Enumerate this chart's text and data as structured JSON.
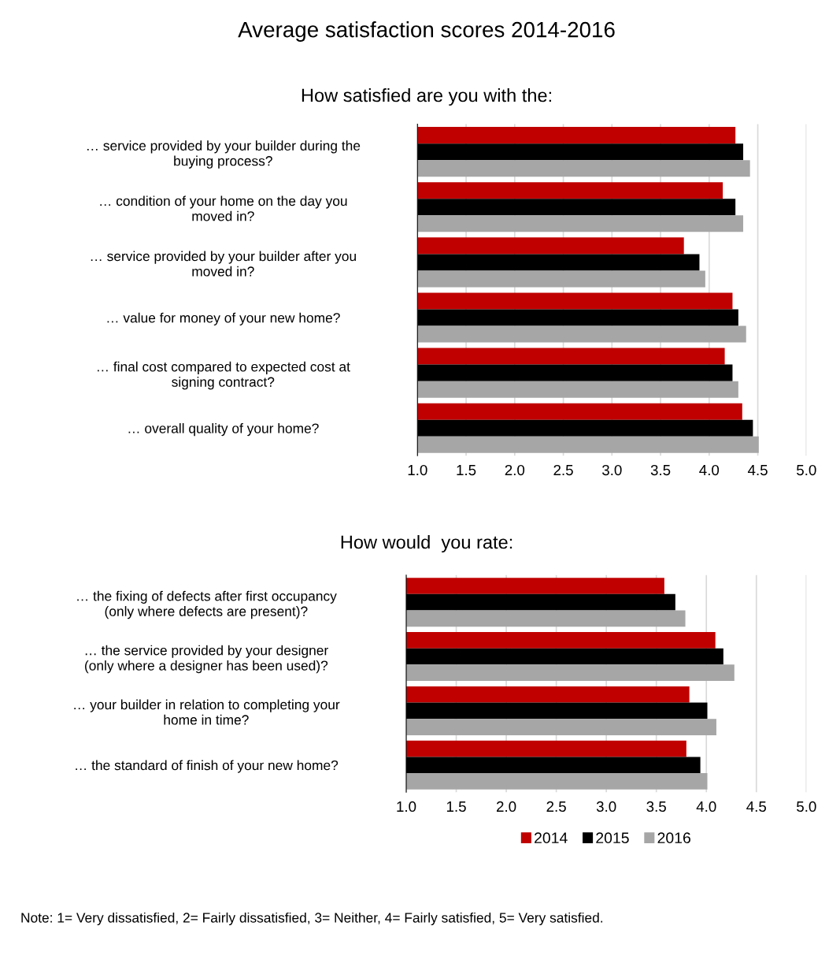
{
  "chart_data": [
    {
      "type": "bar",
      "orientation": "horizontal",
      "title": "Average satisfaction scores 2014-2016",
      "subtitle": "How satisfied are you with the:",
      "categories": [
        "… service provided by your builder during the\nbuying process?",
        "… condition of your home on the day you\nmoved in?",
        "… service provided by your builder after you\nmoved in?",
        "… value for money of your new home?",
        "… final cost compared to expected cost at\nsigning contract?",
        "… overall quality of your home?"
      ],
      "series": [
        {
          "name": "2014",
          "color": "#c00000",
          "values": [
            4.27,
            4.14,
            3.74,
            4.24,
            4.16,
            4.34
          ]
        },
        {
          "name": "2015",
          "color": "#000000",
          "values": [
            4.35,
            4.27,
            3.9,
            4.3,
            4.24,
            4.45
          ]
        },
        {
          "name": "2016",
          "color": "#a6a6a6",
          "values": [
            4.42,
            4.35,
            3.96,
            4.38,
            4.3,
            4.51
          ]
        }
      ],
      "xlim": [
        1,
        5
      ],
      "xticks": [
        {
          "value": 1,
          "label": "1.0"
        },
        {
          "value": 1.5,
          "label": "1.5"
        },
        {
          "value": 2,
          "label": "2.0"
        },
        {
          "value": 2.5,
          "label": "2.5"
        },
        {
          "value": 3,
          "label": "3.0"
        },
        {
          "value": 3.5,
          "label": "3.5"
        },
        {
          "value": 4,
          "label": "4.0"
        },
        {
          "value": 4.5,
          "label": "4.5"
        },
        {
          "value": 5,
          "label": "5.0"
        }
      ],
      "grid": "x",
      "legend": "bottom"
    },
    {
      "type": "bar",
      "orientation": "horizontal",
      "title": "How would  you rate:",
      "categories": [
        "… the fixing of defects after first occupancy\n(only where defects are present)?",
        "… the service provided by your designer\n(only where a designer has been used)?",
        "… your builder in relation to completing your\nhome in time?",
        "… the standard of finish of your new home?"
      ],
      "series": [
        {
          "name": "2014",
          "color": "#c00000",
          "values": [
            3.58,
            4.09,
            3.83,
            3.8
          ]
        },
        {
          "name": "2015",
          "color": "#000000",
          "values": [
            3.69,
            4.17,
            4.01,
            3.94
          ]
        },
        {
          "name": "2016",
          "color": "#a6a6a6",
          "values": [
            3.79,
            4.28,
            4.1,
            4.01
          ]
        }
      ],
      "xlim": [
        1,
        5
      ],
      "xticks": [
        {
          "value": 1,
          "label": "1.0"
        },
        {
          "value": 1.5,
          "label": "1.5"
        },
        {
          "value": 2,
          "label": "2.0"
        },
        {
          "value": 2.5,
          "label": "2.5"
        },
        {
          "value": 3,
          "label": "3.0"
        },
        {
          "value": 3.5,
          "label": "3.5"
        },
        {
          "value": 4,
          "label": "4.0"
        },
        {
          "value": 4.5,
          "label": "4.5"
        },
        {
          "value": 5,
          "label": "5.0"
        }
      ],
      "grid": "x",
      "annotations": [
        "Note: 1= Very dissatisfied, 2= Fairly dissatisfied, 3= Neither, 4= Fairly satisfied, 5= Very satisfied."
      ]
    }
  ]
}
